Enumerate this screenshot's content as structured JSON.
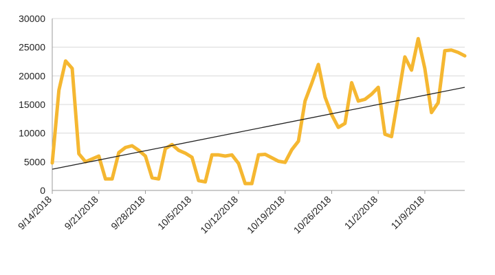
{
  "chart_data": {
    "type": "line",
    "title": "",
    "xlabel": "",
    "ylabel": "",
    "ylim": [
      0,
      30000
    ],
    "y_ticks": [
      0,
      5000,
      10000,
      15000,
      20000,
      25000,
      30000
    ],
    "x_tick_labels": [
      "9/14/2018",
      "9/21/2018",
      "9/28/2018",
      "10/5/2018",
      "10/12/2018",
      "10/19/2018",
      "10/26/2018",
      "11/2/2018",
      "11/9/2018"
    ],
    "grid": "horizontal",
    "legend": "none",
    "colors": {
      "series": "#F5B731",
      "trend": "#222222",
      "grid": "#d9d9d9",
      "axis": "#9a9a9a"
    },
    "series": [
      {
        "x": [
          "9/14/2018",
          "9/15/2018",
          "9/16/2018",
          "9/17/2018",
          "9/18/2018",
          "9/19/2018",
          "9/20/2018",
          "9/21/2018",
          "9/22/2018",
          "9/23/2018",
          "9/24/2018",
          "9/25/2018",
          "9/26/2018",
          "9/27/2018",
          "9/28/2018",
          "9/29/2018",
          "9/30/2018",
          "10/1/2018",
          "10/2/2018",
          "10/3/2018",
          "10/4/2018",
          "10/5/2018",
          "10/6/2018",
          "10/7/2018",
          "10/8/2018",
          "10/9/2018",
          "10/10/2018",
          "10/11/2018",
          "10/12/2018",
          "10/13/2018",
          "10/14/2018",
          "10/15/2018",
          "10/16/2018",
          "10/17/2018",
          "10/18/2018",
          "10/19/2018",
          "10/20/2018",
          "10/21/2018",
          "10/22/2018",
          "10/23/2018",
          "10/24/2018",
          "10/25/2018",
          "10/26/2018",
          "10/27/2018",
          "10/28/2018",
          "10/29/2018",
          "10/30/2018",
          "10/31/2018",
          "11/1/2018",
          "11/2/2018",
          "11/3/2018",
          "11/4/2018",
          "11/5/2018",
          "11/6/2018",
          "11/7/2018",
          "11/8/2018",
          "11/9/2018",
          "11/10/2018",
          "11/11/2018",
          "11/12/2018",
          "11/13/2018",
          "11/14/2018",
          "11/15/2018"
        ],
        "values": [
          4800,
          17500,
          22600,
          21300,
          6400,
          5000,
          5500,
          6000,
          2000,
          2000,
          6600,
          7500,
          7800,
          7000,
          6000,
          2200,
          2000,
          7300,
          8000,
          7000,
          6500,
          5800,
          1700,
          1500,
          6200,
          6200,
          6000,
          6200,
          4700,
          1200,
          1200,
          6200,
          6300,
          5700,
          5100,
          4900,
          7100,
          8600,
          15600,
          18700,
          22000,
          16300,
          13200,
          11000,
          11700,
          18800,
          15600,
          15900,
          16800,
          18000,
          9800,
          9400,
          16300,
          23300,
          21000,
          26500,
          21300,
          13600,
          15300,
          24400,
          24500,
          24100,
          23500
        ]
      }
    ],
    "trendline": {
      "x": [
        "9/14/2018",
        "11/15/2018"
      ],
      "y": [
        3700,
        18000
      ]
    }
  }
}
